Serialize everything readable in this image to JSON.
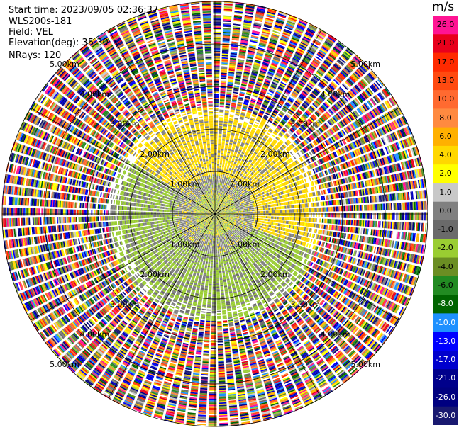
{
  "header": {
    "start_time": "Start time: 2023/09/05 02:36:37",
    "instrument": "WLS200s-181",
    "field": "Field: VEL",
    "elevation": "Elevation(deg): 35.30",
    "nrays": "NRays: 120"
  },
  "colorbar": {
    "unit": "m/s",
    "ticks": [
      "26.0",
      "21.0",
      "17.0",
      "13.0",
      "10.0",
      "8.0",
      "6.0",
      "4.0",
      "2.0",
      "1.0",
      "0.0",
      "-1.0",
      "-2.0",
      "-4.0",
      "-6.0",
      "-8.0",
      "-10.0",
      "-13.0",
      "-17.0",
      "-21.0",
      "-26.0",
      "-30.0"
    ],
    "colors": [
      "#ff1493",
      "#e8001c",
      "#ff2a00",
      "#ff4a10",
      "#ff6a30",
      "#ff8a40",
      "#ffb000",
      "#ffd700",
      "#ffff00",
      "#c8c8c8",
      "#808080",
      "#6a6a6a",
      "#9acd32",
      "#6b8e23",
      "#228b22",
      "#006400",
      "#1e90ff",
      "#0000ff",
      "#0000cd",
      "#00008b",
      "#000080",
      "#191970"
    ]
  },
  "chart_data": {
    "type": "ppi",
    "field": "VEL",
    "units": "m/s",
    "nrays": 120,
    "range_ring_labels": [
      "1.00km",
      "2.00km",
      "3.00km",
      "4.00km",
      "5.00km"
    ],
    "range_rings_km": [
      1,
      2,
      3,
      4,
      5
    ],
    "max_range_km": 5,
    "pattern": [
      {
        "from_km": 0,
        "to_km": 0.5,
        "field": "light winds, green/yellow mix near zero"
      },
      {
        "from_km": 0.5,
        "to_km": 2.5,
        "north_east": "positive velocity (~2 m/s, yellow)",
        "south_west": "negative velocity (~-2 m/s, green)",
        "background": "near 0 m/s (gray)"
      },
      {
        "from_km": 2.5,
        "to_km": 5.0,
        "field": "noise, random colors across full scale"
      }
    ]
  }
}
